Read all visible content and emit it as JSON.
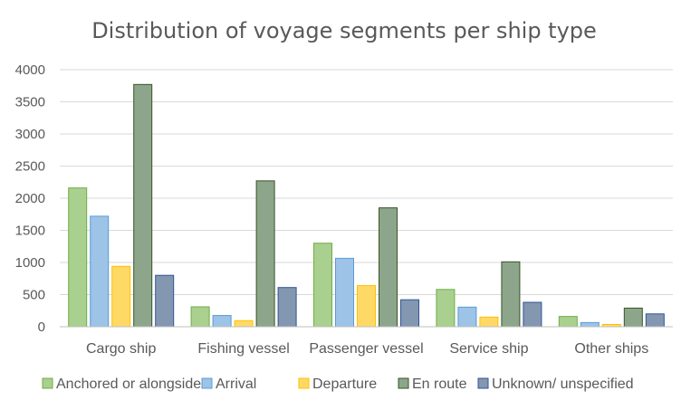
{
  "chart_data": {
    "type": "bar",
    "title": "Distribution  of voyage  segments  per ship type",
    "categories": [
      "Cargo ship",
      "Fishing vessel",
      "Passenger vessel",
      "Service ship",
      "Other ships"
    ],
    "series": [
      {
        "name": "Anchored or alongside",
        "color": "#a9d08e",
        "stroke": "#70ad47",
        "values": [
          2160,
          310,
          1300,
          580,
          160
        ]
      },
      {
        "name": "Arrival",
        "color": "#9dc3e6",
        "stroke": "#5b9bd5",
        "values": [
          1720,
          175,
          1065,
          305,
          65
        ]
      },
      {
        "name": "Departure",
        "color": "#ffd966",
        "stroke": "#ffc000",
        "values": [
          940,
          95,
          640,
          150,
          35
        ]
      },
      {
        "name": "En route",
        "color": "#8da58b",
        "stroke": "#375623",
        "values": [
          3770,
          2270,
          1850,
          1010,
          290
        ]
      },
      {
        "name": "Unknown/ unspecified",
        "color": "#8497b0",
        "stroke": "#2f5597",
        "values": [
          800,
          610,
          420,
          380,
          200
        ]
      }
    ],
    "ylim": [
      0,
      4000
    ],
    "yticks": [
      "0",
      "500",
      "1000",
      "1500",
      "2000",
      "2500",
      "3000",
      "3500",
      "4000"
    ],
    "grid": true,
    "legend_position": "bottom"
  }
}
